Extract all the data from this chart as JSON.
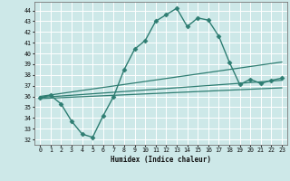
{
  "xlabel": "Humidex (Indice chaleur)",
  "bg_color": "#cde8e8",
  "grid_color": "#b0d8d8",
  "line_color": "#2e7d72",
  "xlim": [
    -0.5,
    23.5
  ],
  "ylim": [
    31.5,
    44.8
  ],
  "xticks": [
    0,
    1,
    2,
    3,
    4,
    5,
    6,
    7,
    8,
    9,
    10,
    11,
    12,
    13,
    14,
    15,
    16,
    17,
    18,
    19,
    20,
    21,
    22,
    23
  ],
  "yticks": [
    32,
    33,
    34,
    35,
    36,
    37,
    38,
    39,
    40,
    41,
    42,
    43,
    44
  ],
  "series": [
    {
      "x": [
        0,
        1,
        2,
        3,
        4,
        5,
        6,
        7,
        8,
        9,
        10,
        11,
        12,
        13,
        14,
        15,
        16,
        17,
        18,
        19,
        20,
        21,
        22,
        23
      ],
      "y": [
        35.9,
        36.1,
        35.3,
        33.7,
        32.5,
        32.2,
        34.2,
        36.0,
        38.5,
        40.4,
        41.2,
        43.0,
        43.6,
        44.2,
        42.5,
        43.3,
        43.1,
        41.6,
        39.2,
        37.1,
        37.6,
        37.2,
        37.5,
        37.7
      ],
      "marker": "D",
      "markersize": 2.5,
      "linewidth": 1.0
    },
    {
      "x": [
        0,
        23
      ],
      "y": [
        36.0,
        39.2
      ],
      "marker": null,
      "linewidth": 0.9
    },
    {
      "x": [
        0,
        23
      ],
      "y": [
        35.9,
        37.5
      ],
      "marker": null,
      "linewidth": 0.9
    },
    {
      "x": [
        0,
        23
      ],
      "y": [
        35.8,
        36.8
      ],
      "marker": null,
      "linewidth": 0.9
    }
  ]
}
